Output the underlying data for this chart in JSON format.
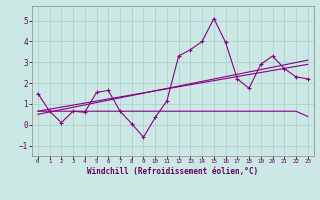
{
  "bg_color": "#cce8e4",
  "grid_color": "#aacccc",
  "line_color": "#880088",
  "xlabel": "Windchill (Refroidissement éolien,°C)",
  "xlim": [
    -0.5,
    23.5
  ],
  "ylim": [
    -1.5,
    5.7
  ],
  "xticks": [
    0,
    1,
    2,
    3,
    4,
    5,
    6,
    7,
    8,
    9,
    10,
    11,
    12,
    13,
    14,
    15,
    16,
    17,
    18,
    19,
    20,
    21,
    22,
    23
  ],
  "yticks": [
    -1,
    0,
    1,
    2,
    3,
    4,
    5
  ],
  "series1_x": [
    0,
    1,
    2,
    3,
    4,
    5,
    6,
    7,
    8,
    9,
    10,
    11,
    12,
    13,
    14,
    15,
    16,
    17,
    18,
    19,
    20,
    21,
    22,
    23
  ],
  "series1_y": [
    1.5,
    0.65,
    0.1,
    0.65,
    0.6,
    1.55,
    1.65,
    0.65,
    0.05,
    -0.6,
    0.35,
    1.15,
    3.3,
    3.6,
    4.0,
    5.1,
    3.95,
    2.2,
    1.75,
    2.9,
    3.3,
    2.7,
    2.3,
    2.2
  ],
  "series2_x": [
    0,
    1,
    2,
    3,
    4,
    5,
    6,
    7,
    8,
    9,
    10,
    11,
    12,
    13,
    14,
    15,
    16,
    17,
    18,
    19,
    20,
    21,
    22,
    23
  ],
  "series2_y": [
    0.65,
    0.65,
    0.65,
    0.65,
    0.65,
    0.65,
    0.65,
    0.65,
    0.65,
    0.65,
    0.65,
    0.65,
    0.65,
    0.65,
    0.65,
    0.65,
    0.65,
    0.65,
    0.65,
    0.65,
    0.65,
    0.65,
    0.65,
    0.4
  ],
  "series3_x": [
    0,
    23
  ],
  "series3_y": [
    0.5,
    3.1
  ],
  "series4_x": [
    0,
    23
  ],
  "series4_y": [
    0.65,
    2.9
  ]
}
